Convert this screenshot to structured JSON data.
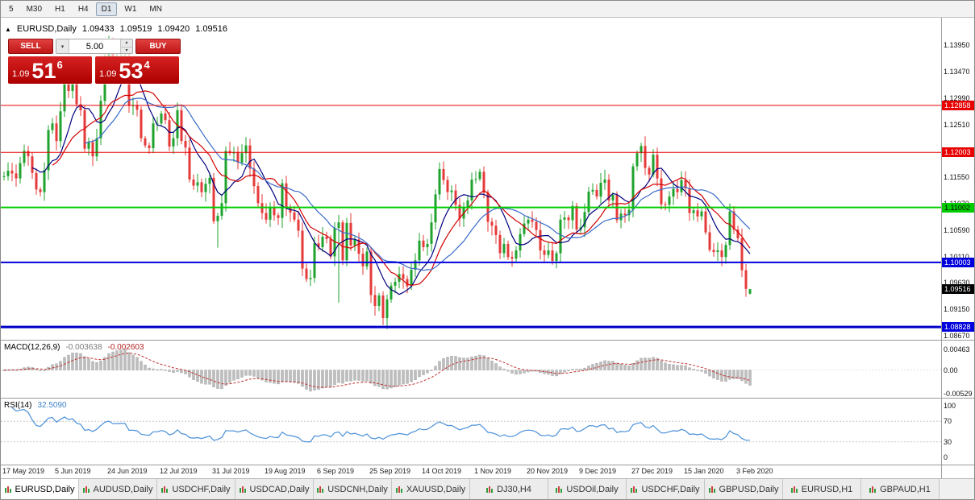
{
  "toolbar": {
    "timeframes": [
      {
        "label": "5",
        "active": false
      },
      {
        "label": "M30",
        "active": false
      },
      {
        "label": "H1",
        "active": false
      },
      {
        "label": "H4",
        "active": false
      },
      {
        "label": "D1",
        "active": true
      },
      {
        "label": "W1",
        "active": false
      },
      {
        "label": "MN",
        "active": false
      }
    ]
  },
  "chart_header": {
    "collapse_icon": "▲",
    "title": "EURUSD,Daily",
    "open": "1.09433",
    "high": "1.09519",
    "low": "1.09420",
    "close": "1.09516"
  },
  "trade_panel": {
    "sell_label": "SELL",
    "buy_label": "BUY",
    "volume": "5.00",
    "dropdown_icon": "▾",
    "spin_up_icon": "▴",
    "spin_down_icon": "▾",
    "sell_price": {
      "big_figure": "1.09",
      "pips": "51",
      "pipette": "6"
    },
    "buy_price": {
      "big_figure": "1.09",
      "pips": "53",
      "pipette": "4"
    }
  },
  "price_axis": {
    "ticks": [
      "1.13950",
      "1.13470",
      "1.12990",
      "1.12510",
      "1.12030",
      "1.11550",
      "1.11070",
      "1.10590",
      "1.10110",
      "1.09630",
      "1.09150",
      "1.08670"
    ],
    "badges": [
      {
        "label": "1.12858",
        "price": 1.12858,
        "type": "red"
      },
      {
        "label": "1.12003",
        "price": 1.12003,
        "type": "red"
      },
      {
        "label": "1.11002",
        "price": 1.11002,
        "type": "green"
      },
      {
        "label": "1.10003",
        "price": 1.10003,
        "type": "blue"
      },
      {
        "label": "1.09516",
        "price": 1.09516,
        "type": "black"
      },
      {
        "label": "1.08828",
        "price": 1.08828,
        "type": "blue"
      }
    ]
  },
  "macd_panel": {
    "label": "MACD(12,26,9)",
    "main_value": "-0.003638",
    "signal_value": "-0.002603",
    "axis": [
      "0.00463",
      "0.00",
      "-0.00529"
    ]
  },
  "rsi_panel": {
    "label": "RSI(14)",
    "value": "32.5090",
    "axis": [
      "100",
      "70",
      "30",
      "0"
    ],
    "levels": [
      70,
      30
    ]
  },
  "time_axis": {
    "labels": [
      "17 May 2019",
      "5 Jun 2019",
      "24 Jun 2019",
      "12 Jul 2019",
      "31 Jul 2019",
      "19 Aug 2019",
      "6 Sep 2019",
      "25 Sep 2019",
      "14 Oct 2019",
      "1 Nov 2019",
      "20 Nov 2019",
      "9 Dec 2019",
      "27 Dec 2019",
      "15 Jan 2020",
      "3 Feb 2020"
    ]
  },
  "tabs": [
    {
      "label": "EURUSD,Daily",
      "active": true
    },
    {
      "label": "AUDUSD,Daily",
      "active": false
    },
    {
      "label": "USDCHF,Daily",
      "active": false
    },
    {
      "label": "USDCAD,Daily",
      "active": false
    },
    {
      "label": "USDCNH,Daily",
      "active": false
    },
    {
      "label": "XAUUSD,Daily",
      "active": false
    },
    {
      "label": "DJ30,H4",
      "active": false
    },
    {
      "label": "USDOil,Daily",
      "active": false
    },
    {
      "label": "USDCHF,Daily",
      "active": false
    },
    {
      "label": "GBPUSD,Daily",
      "active": false
    },
    {
      "label": "EURUSD,H1",
      "active": false
    },
    {
      "label": "GBPAUD,H1",
      "active": false
    }
  ],
  "chart_data": {
    "type": "candlestick",
    "symbol": "EURUSD",
    "timeframe": "Daily",
    "x_labels": [
      "17 May 2019",
      "5 Jun 2019",
      "24 Jun 2019",
      "12 Jul 2019",
      "31 Jul 2019",
      "19 Aug 2019",
      "6 Sep 2019",
      "25 Sep 2019",
      "14 Oct 2019",
      "1 Nov 2019",
      "20 Nov 2019",
      "9 Dec 2019",
      "27 Dec 2019",
      "15 Jan 2020",
      "3 Feb 2020"
    ],
    "y_axis_range": [
      1.0861,
      1.1435
    ],
    "closes": [
      1.1157,
      1.1167,
      1.1162,
      1.1153,
      1.1181,
      1.1203,
      1.1193,
      1.1163,
      1.1133,
      1.1128,
      1.1168,
      1.1241,
      1.1253,
      1.1221,
      1.1275,
      1.1333,
      1.1312,
      1.1328,
      1.1288,
      1.1277,
      1.1207,
      1.1219,
      1.1193,
      1.1226,
      1.1294,
      1.1368,
      1.1399,
      1.1367,
      1.137,
      1.1372,
      1.1373,
      1.1285,
      1.1286,
      1.1278,
      1.1226,
      1.1213,
      1.1208,
      1.1253,
      1.1253,
      1.1271,
      1.1259,
      1.1211,
      1.1226,
      1.1277,
      1.1221,
      1.1209,
      1.1151,
      1.114,
      1.1146,
      1.1128,
      1.1143,
      1.1154,
      1.1075,
      1.1085,
      1.1108,
      1.1203,
      1.1199,
      1.12,
      1.1182,
      1.1199,
      1.1213,
      1.1171,
      1.1139,
      1.1108,
      1.109,
      1.1078,
      1.11,
      1.1086,
      1.1081,
      1.1144,
      1.1101,
      1.1091,
      1.1078,
      1.1058,
      1.0989,
      1.097,
      1.0972,
      1.1035,
      1.1028,
      1.1047,
      1.1043,
      1.1011,
      1.1063,
      1.1073,
      1.1004,
      1.1072,
      1.1031,
      1.1042,
      1.1016,
      1.0993,
      1.102,
      1.0941,
      1.0921,
      1.094,
      1.0899,
      1.0933,
      1.0958,
      1.0965,
      1.0979,
      1.097,
      1.0957,
      1.0987,
      1.1004,
      1.104,
      1.1028,
      1.1034,
      1.1073,
      1.1124,
      1.117,
      1.115,
      1.1128,
      1.1131,
      1.1105,
      1.108,
      1.1099,
      1.1113,
      1.1151,
      1.1152,
      1.1165,
      1.1127,
      1.1074,
      1.1067,
      1.105,
      1.1017,
      1.1034,
      1.101,
      1.1007,
      1.1022,
      1.1052,
      1.1071,
      1.1078,
      1.1074,
      1.1059,
      1.1022,
      1.1014,
      1.1022,
      1.1003,
      1.1017,
      1.1078,
      1.1082,
      1.1077,
      1.1103,
      1.106,
      1.1064,
      1.1092,
      1.1129,
      1.1132,
      1.112,
      1.1145,
      1.1151,
      1.1113,
      1.1123,
      1.1077,
      1.1089,
      1.1086,
      1.1096,
      1.1175,
      1.1199,
      1.1212,
      1.1172,
      1.116,
      1.1196,
      1.1153,
      1.1106,
      1.1105,
      1.112,
      1.1134,
      1.1128,
      1.115,
      1.1135,
      1.109,
      1.1095,
      1.1084,
      1.1093,
      1.1055,
      1.1023,
      1.1019,
      1.1022,
      1.101,
      1.1032,
      1.1093,
      1.106,
      1.1044,
      1.0986,
      1.0952,
      1.09516
    ],
    "wick_overrides": {
      "26": {
        "h": 1.1412
      },
      "53": {
        "l": 1.1027
      },
      "83": {
        "h": 1.1087,
        "l": 1.0927
      },
      "95": {
        "l": 1.0879
      }
    },
    "last_ohlc": {
      "open": 1.09433,
      "high": 1.09519,
      "low": 1.0942,
      "close": 1.09516
    },
    "colors": {
      "up": "#1FA32E",
      "down": "#E53A3A",
      "macd_hist": "#bdbdbd",
      "macd_signal": "#c03030",
      "rsi": "#4a90d9"
    },
    "horizontal_lines": [
      {
        "price": 1.12858,
        "color": "#e80000",
        "width": 1
      },
      {
        "price": 1.12003,
        "color": "#e80000",
        "width": 1
      },
      {
        "price": 1.11002,
        "color": "#00cc00",
        "width": 2
      },
      {
        "price": 1.10003,
        "color": "#0000dd",
        "width": 2
      },
      {
        "price": 1.08828,
        "color": "#0000c8",
        "width": 3
      }
    ],
    "indicators": {
      "moving_averages": [
        {
          "period": 8,
          "color": "#00007f"
        },
        {
          "period": 13,
          "color": "#d40000"
        },
        {
          "period": 21,
          "color": "#3a6bc9"
        }
      ],
      "macd": {
        "fast": 12,
        "slow": 26,
        "signal": 9,
        "main": -0.003638,
        "signal_value": -0.002603
      },
      "rsi": {
        "period": 14,
        "value": 32.509
      }
    }
  }
}
